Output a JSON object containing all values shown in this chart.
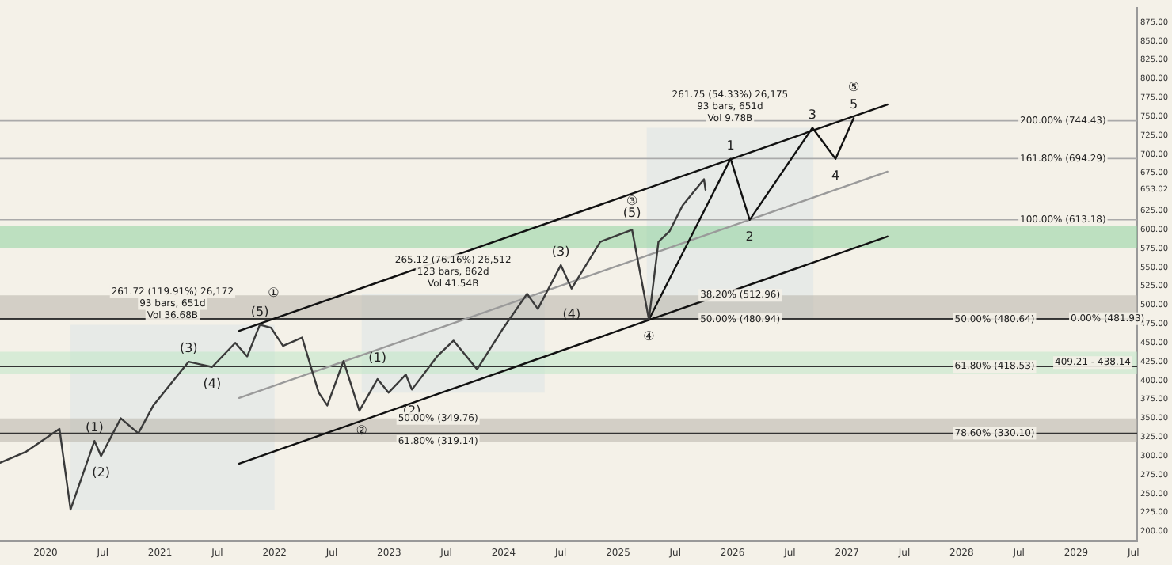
{
  "chart_data": {
    "type": "line",
    "xlim": [
      "2019-08-08",
      "2029-07-13"
    ],
    "ylim": [
      187,
      894
    ],
    "xticks": [
      {
        "value": "2020",
        "label": "2020"
      },
      {
        "value": "2020-07",
        "label": "Jul"
      },
      {
        "value": "2021",
        "label": "2021"
      },
      {
        "value": "2021-07",
        "label": "Jul"
      },
      {
        "value": "2022",
        "label": "2022"
      },
      {
        "value": "2022-07",
        "label": "Jul"
      },
      {
        "value": "2023",
        "label": "2023"
      },
      {
        "value": "2023-07",
        "label": "Jul"
      },
      {
        "value": "2024",
        "label": "2024"
      },
      {
        "value": "2024-07",
        "label": "Jul"
      },
      {
        "value": "2025",
        "label": "2025"
      },
      {
        "value": "2025-07",
        "label": "Jul"
      },
      {
        "value": "2026",
        "label": "2026"
      },
      {
        "value": "2026-07",
        "label": "Jul"
      },
      {
        "value": "2027",
        "label": "2027"
      },
      {
        "value": "2027-07",
        "label": "Jul"
      },
      {
        "value": "2028",
        "label": "2028"
      },
      {
        "value": "2028-07",
        "label": "Jul"
      },
      {
        "value": "2029",
        "label": "2029"
      },
      {
        "value": "2029-07",
        "label": "Jul"
      }
    ],
    "yticks": [
      {
        "value": 200,
        "label": "200.00"
      },
      {
        "value": 225,
        "label": "225.00"
      },
      {
        "value": 250,
        "label": "250.00"
      },
      {
        "value": 275,
        "label": "275.00"
      },
      {
        "value": 300,
        "label": "300.00"
      },
      {
        "value": 325,
        "label": "325.00"
      },
      {
        "value": 350,
        "label": "350.00"
      },
      {
        "value": 375,
        "label": "375.00"
      },
      {
        "value": 400,
        "label": "400.00"
      },
      {
        "value": 425,
        "label": "425.00"
      },
      {
        "value": 450,
        "label": "450.00"
      },
      {
        "value": 475,
        "label": "475.00"
      },
      {
        "value": 500,
        "label": "500.00"
      },
      {
        "value": 525,
        "label": "525.00"
      },
      {
        "value": 550,
        "label": "550.00"
      },
      {
        "value": 575,
        "label": "575.00"
      },
      {
        "value": 600,
        "label": "600.00"
      },
      {
        "value": 625,
        "label": "625.00"
      },
      {
        "value": 653.02,
        "label": "653.02"
      },
      {
        "value": 675,
        "label": "675.00"
      },
      {
        "value": 700,
        "label": "700.00"
      },
      {
        "value": 725,
        "label": "725.00"
      },
      {
        "value": 750,
        "label": "750.00"
      },
      {
        "value": 775,
        "label": "775.00"
      },
      {
        "value": 800,
        "label": "800.00"
      },
      {
        "value": 825,
        "label": "825.00"
      },
      {
        "value": 850,
        "label": "850.00"
      },
      {
        "value": 875,
        "label": "875.00"
      }
    ],
    "grid": false,
    "legend": false,
    "marker": "none",
    "series": [
      {
        "type": "line",
        "color": "#3a3a3a",
        "x": [
          "2019-08-08",
          "2019-11-01",
          "2020-02-15",
          "2020-03-20",
          "2020-06-05",
          "2020-06-26",
          "2020-08-28",
          "2020-10-23",
          "2020-12-10",
          "2021-04-01",
          "2021-06-15",
          "2021-08-28",
          "2021-10-05",
          "2021-11-15",
          "2021-12-20",
          "2022-01-28",
          "2022-03-28",
          "2022-05-20",
          "2022-06-17",
          "2022-08-08",
          "2022-09-28",
          "2022-11-25",
          "2022-12-30",
          "2023-02-24",
          "2023-03-13",
          "2023-06-02",
          "2023-07-24",
          "2023-10-08",
          "2024-01-01",
          "2024-03-15",
          "2024-04-19",
          "2024-07-01",
          "2024-08-05",
          "2024-11-05",
          "2025-02-15",
          "2025-04-08",
          "2025-05-08",
          "2025-06-13",
          "2025-07-24",
          "2025-10-01",
          "2025-10-06"
        ],
        "values": [
          291,
          306,
          336,
          229,
          320,
          300,
          350,
          330,
          367,
          425,
          418,
          450,
          432,
          474,
          470,
          446,
          457,
          384,
          367,
          426,
          360,
          402,
          384,
          408,
          388,
          432,
          453,
          415,
          470,
          515,
          495,
          553,
          522,
          584,
          600,
          481,
          584,
          598,
          632,
          667,
          653
        ]
      },
      {
        "type": "line",
        "color": "#111111",
        "x": [
          "2025-04-08",
          "2025-12-25",
          "2026-02-25",
          "2026-09-12",
          "2026-11-25",
          "2027-01-22"
        ],
        "values": [
          481,
          694,
          613,
          735,
          694,
          748
        ]
      },
      {
        "type": "line",
        "color": "#111111",
        "x": [
          "2021-09-10",
          "2027-05-08"
        ],
        "values": [
          466,
          766
        ]
      },
      {
        "type": "line",
        "color": "#111111",
        "x": [
          "2021-09-10",
          "2027-05-08"
        ],
        "values": [
          290,
          591
        ]
      },
      {
        "type": "line",
        "color": "#9a9a9a",
        "x": [
          "2021-09-10",
          "2027-05-08"
        ],
        "values": [
          377,
          677
        ]
      }
    ],
    "bands": [
      {
        "axis": "x",
        "from": "2020-03-20",
        "to": "2022-01-01",
        "color": "#dce4e6",
        "label": "261.72 (119.91%) 26,172\n93 bars, 651d\nVol 36.68B"
      },
      {
        "axis": "x",
        "from": "2022-10-05",
        "to": "2024-05-10",
        "color": "#dce4e6",
        "label": "265.12 (76.16%) 26,512\n123 bars, 862d\nVol 41.54B"
      },
      {
        "axis": "x",
        "from": "2025-04-01",
        "to": "2026-09-15",
        "color": "#dce4e6",
        "label": "261.75 (54.33%) 26,175\n93 bars, 651d\nVol 9.78B"
      },
      {
        "axis": "y",
        "from": 575,
        "to": 605,
        "color": "#8fd19e"
      },
      {
        "axis": "y",
        "from": 409.21,
        "to": 438.14,
        "color": "#bfe6c6",
        "label": "409.21 - 438.14"
      },
      {
        "axis": "y",
        "from": 319.14,
        "to": 349.76,
        "color": "#b8b2aa"
      },
      {
        "axis": "y",
        "from": 480.94,
        "to": 512.96,
        "color": "#b8b2aa"
      }
    ],
    "ref_lines": [
      {
        "axis": "y",
        "value": 744.43,
        "color": "#aaaaaa"
      },
      {
        "axis": "y",
        "value": 694.29,
        "color": "#aaaaaa"
      },
      {
        "axis": "y",
        "value": 613.18,
        "color": "#aaaaaa"
      },
      {
        "axis": "y",
        "value": 480.64,
        "color": "#333333"
      },
      {
        "axis": "y",
        "value": 481.93,
        "color": "#333333"
      },
      {
        "axis": "y",
        "value": 418.53,
        "color": "#333333"
      },
      {
        "axis": "y",
        "value": 330.1,
        "color": "#333333"
      }
    ],
    "annotations": [
      {
        "text": "(1)",
        "x": "2020-06-05",
        "y": 320
      },
      {
        "text": "(2)",
        "x": "2020-06-26",
        "y": 300
      },
      {
        "text": "(3)",
        "x": "2021-04-01",
        "y": 425
      },
      {
        "text": "(4)",
        "x": "2021-06-15",
        "y": 418
      },
      {
        "text": "①",
        "x": "2021-12-28",
        "y": 516
      },
      {
        "text": "(5)",
        "x": "2021-11-15",
        "y": 474
      },
      {
        "text": "②",
        "x": "2022-10-05",
        "y": 333
      },
      {
        "text": "(1)",
        "x": "2022-11-25",
        "y": 429
      },
      {
        "text": "(2)",
        "x": "2023-03-13",
        "y": 359
      },
      {
        "text": "(3)",
        "x": "2024-07-01",
        "y": 553
      },
      {
        "text": "(4)",
        "x": "2024-08-05",
        "y": 487
      },
      {
        "text": "③",
        "x": "2025-02-15",
        "y": 637
      },
      {
        "text": "(5)",
        "x": "2025-02-15",
        "y": 621
      },
      {
        "text": "④",
        "x": "2025-04-08",
        "y": 481
      },
      {
        "text": "1",
        "x": "2025-12-25",
        "y": 694
      },
      {
        "text": "2",
        "x": "2026-02-25",
        "y": 613
      },
      {
        "text": "3",
        "x": "2026-09-12",
        "y": 751
      },
      {
        "text": "4",
        "x": "2026-11-25",
        "y": 694
      },
      {
        "text": "5",
        "x": "2027-01-22",
        "y": 748
      },
      {
        "text": "⑤",
        "x": "2027-01-22",
        "y": 748
      },
      {
        "text": "200.00% (744.43)",
        "x": "2028-11-20",
        "y": 744.43
      },
      {
        "text": "161.80% (694.29)",
        "x": "2028-11-20",
        "y": 694.29
      },
      {
        "text": "100.00% (613.18)",
        "x": "2028-11-20",
        "y": 613.18
      },
      {
        "text": "38.20% (512.96)",
        "x": "2026-01-25",
        "y": 512.96
      },
      {
        "text": "50.00% (480.94)",
        "x": "2026-01-25",
        "y": 480.94
      },
      {
        "text": "50.00% (480.64)",
        "x": "2028-04-15",
        "y": 480.64
      },
      {
        "text": "0.00% (481.93)",
        "x": "2029-04-10",
        "y": 481.93
      },
      {
        "text": "61.80% (418.53)",
        "x": "2028-04-15",
        "y": 418.53
      },
      {
        "text": "78.60% (330.10)",
        "x": "2028-04-15",
        "y": 330.1
      },
      {
        "text": "50.00% (349.76)",
        "x": "2023-06-05",
        "y": 349.76
      },
      {
        "text": "61.80% (319.14)",
        "x": "2023-06-05",
        "y": 319.14
      }
    ]
  }
}
